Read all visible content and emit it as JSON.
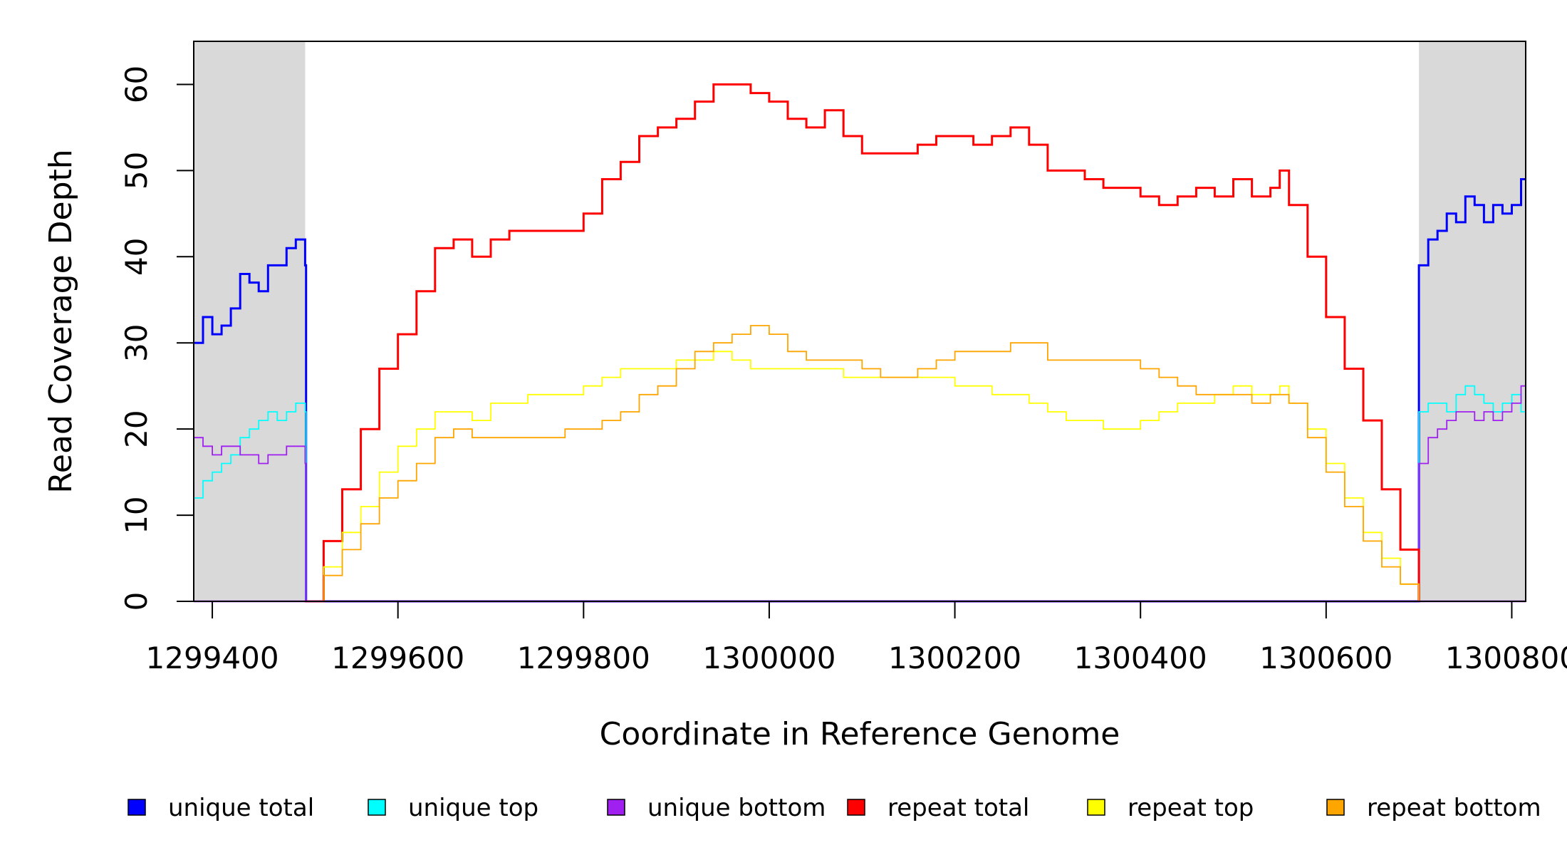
{
  "chart_data": {
    "type": "line",
    "xlabel": "Coordinate in Reference Genome",
    "ylabel": "Read Coverage Depth",
    "xlim": [
      1299380,
      1300815
    ],
    "ylim": [
      0,
      65
    ],
    "x_ticks": [
      1299400,
      1299600,
      1299800,
      1300000,
      1300200,
      1300400,
      1300600,
      1300800
    ],
    "x_tick_labels": [
      "1299400",
      "1299600",
      "1299800",
      "1300000",
      "1300200",
      "1300400",
      "1300600",
      "1300800"
    ],
    "y_ticks": [
      0,
      10,
      20,
      30,
      40,
      50,
      60
    ],
    "y_tick_labels": [
      "0",
      "10",
      "20",
      "30",
      "40",
      "50",
      "60"
    ],
    "shaded_regions": [
      [
        1299380,
        1299500
      ],
      [
        1300700,
        1300815
      ]
    ],
    "grid": false,
    "legend_position": "bottom",
    "series": [
      {
        "name": "unique total",
        "color": "#0000ff",
        "x": [
          1299380,
          1299390,
          1299400,
          1299410,
          1299420,
          1299430,
          1299440,
          1299450,
          1299460,
          1299470,
          1299480,
          1299490,
          1299500,
          1299501,
          1300699,
          1300700,
          1300710,
          1300720,
          1300730,
          1300740,
          1300750,
          1300760,
          1300770,
          1300780,
          1300790,
          1300800,
          1300810,
          1300815
        ],
        "y": [
          30,
          33,
          31,
          32,
          34,
          38,
          37,
          36,
          39,
          39,
          41,
          42,
          39,
          0,
          0,
          39,
          42,
          43,
          45,
          44,
          47,
          46,
          44,
          46,
          45,
          46,
          49,
          49
        ]
      },
      {
        "name": "unique top",
        "color": "#00ffff",
        "x": [
          1299380,
          1299390,
          1299400,
          1299410,
          1299420,
          1299430,
          1299440,
          1299450,
          1299460,
          1299470,
          1299480,
          1299490,
          1299500,
          1299501,
          1300699,
          1300700,
          1300710,
          1300720,
          1300730,
          1300740,
          1300750,
          1300760,
          1300770,
          1300780,
          1300790,
          1300800,
          1300810,
          1300815
        ],
        "y": [
          12,
          14,
          15,
          16,
          17,
          19,
          20,
          21,
          22,
          21,
          22,
          23,
          22,
          0,
          0,
          22,
          23,
          23,
          22,
          24,
          25,
          24,
          23,
          22,
          23,
          24,
          22,
          22
        ]
      },
      {
        "name": "unique bottom",
        "color": "#a020f0",
        "x": [
          1299380,
          1299390,
          1299400,
          1299410,
          1299420,
          1299430,
          1299440,
          1299450,
          1299460,
          1299470,
          1299480,
          1299490,
          1299500,
          1299501,
          1300699,
          1300700,
          1300710,
          1300720,
          1300730,
          1300740,
          1300750,
          1300760,
          1300770,
          1300780,
          1300790,
          1300800,
          1300810,
          1300815
        ],
        "y": [
          19,
          18,
          17,
          18,
          18,
          17,
          17,
          16,
          17,
          17,
          18,
          18,
          16,
          0,
          0,
          16,
          19,
          20,
          21,
          22,
          22,
          21,
          22,
          21,
          22,
          23,
          25,
          25
        ]
      },
      {
        "name": "repeat total",
        "color": "#ff0000",
        "x": [
          1299500,
          1299520,
          1299540,
          1299560,
          1299580,
          1299600,
          1299620,
          1299640,
          1299660,
          1299680,
          1299700,
          1299720,
          1299740,
          1299760,
          1299780,
          1299800,
          1299820,
          1299840,
          1299860,
          1299880,
          1299900,
          1299920,
          1299940,
          1299960,
          1299980,
          1300000,
          1300020,
          1300040,
          1300060,
          1300080,
          1300100,
          1300120,
          1300140,
          1300160,
          1300180,
          1300200,
          1300220,
          1300240,
          1300260,
          1300280,
          1300300,
          1300320,
          1300340,
          1300360,
          1300380,
          1300400,
          1300420,
          1300440,
          1300460,
          1300480,
          1300500,
          1300520,
          1300540,
          1300550,
          1300560,
          1300580,
          1300600,
          1300620,
          1300640,
          1300660,
          1300680,
          1300700
        ],
        "y": [
          0,
          7,
          13,
          20,
          27,
          31,
          36,
          41,
          42,
          40,
          42,
          43,
          43,
          43,
          43,
          45,
          49,
          51,
          54,
          55,
          56,
          58,
          60,
          60,
          59,
          58,
          56,
          55,
          57,
          54,
          52,
          52,
          52,
          53,
          54,
          54,
          53,
          54,
          55,
          53,
          50,
          50,
          49,
          48,
          48,
          47,
          46,
          47,
          48,
          47,
          49,
          47,
          48,
          50,
          46,
          40,
          33,
          27,
          21,
          13,
          6,
          0
        ]
      },
      {
        "name": "repeat top",
        "color": "#ffff00",
        "x": [
          1299500,
          1299520,
          1299540,
          1299560,
          1299580,
          1299600,
          1299620,
          1299640,
          1299660,
          1299680,
          1299700,
          1299720,
          1299740,
          1299760,
          1299780,
          1299800,
          1299820,
          1299840,
          1299860,
          1299880,
          1299900,
          1299920,
          1299940,
          1299960,
          1299980,
          1300000,
          1300020,
          1300040,
          1300060,
          1300080,
          1300100,
          1300120,
          1300140,
          1300160,
          1300180,
          1300200,
          1300220,
          1300240,
          1300260,
          1300280,
          1300300,
          1300320,
          1300340,
          1300360,
          1300380,
          1300400,
          1300420,
          1300440,
          1300460,
          1300480,
          1300500,
          1300520,
          1300540,
          1300550,
          1300560,
          1300580,
          1300600,
          1300620,
          1300640,
          1300660,
          1300680,
          1300700
        ],
        "y": [
          0,
          4,
          8,
          11,
          15,
          18,
          20,
          22,
          22,
          21,
          23,
          23,
          24,
          24,
          24,
          25,
          26,
          27,
          27,
          27,
          28,
          28,
          29,
          28,
          27,
          27,
          27,
          27,
          27,
          26,
          26,
          26,
          26,
          26,
          26,
          25,
          25,
          24,
          24,
          23,
          22,
          21,
          21,
          20,
          20,
          21,
          22,
          23,
          23,
          24,
          25,
          24,
          24,
          25,
          23,
          20,
          16,
          12,
          8,
          5,
          2,
          0
        ]
      },
      {
        "name": "repeat bottom",
        "color": "#ffa500",
        "x": [
          1299500,
          1299520,
          1299540,
          1299560,
          1299580,
          1299600,
          1299620,
          1299640,
          1299660,
          1299680,
          1299700,
          1299720,
          1299740,
          1299760,
          1299780,
          1299800,
          1299820,
          1299840,
          1299860,
          1299880,
          1299900,
          1299920,
          1299940,
          1299960,
          1299980,
          1300000,
          1300020,
          1300040,
          1300060,
          1300080,
          1300100,
          1300120,
          1300140,
          1300160,
          1300180,
          1300200,
          1300220,
          1300240,
          1300260,
          1300280,
          1300300,
          1300320,
          1300340,
          1300360,
          1300380,
          1300400,
          1300420,
          1300440,
          1300460,
          1300480,
          1300500,
          1300520,
          1300540,
          1300550,
          1300560,
          1300580,
          1300600,
          1300620,
          1300640,
          1300660,
          1300680,
          1300700
        ],
        "y": [
          0,
          3,
          6,
          9,
          12,
          14,
          16,
          19,
          20,
          19,
          19,
          19,
          19,
          19,
          20,
          20,
          21,
          22,
          24,
          25,
          27,
          29,
          30,
          31,
          32,
          31,
          29,
          28,
          28,
          28,
          27,
          26,
          26,
          27,
          28,
          29,
          29,
          29,
          30,
          30,
          28,
          28,
          28,
          28,
          28,
          27,
          26,
          25,
          24,
          24,
          24,
          23,
          24,
          24,
          23,
          19,
          15,
          11,
          7,
          4,
          2,
          0
        ]
      }
    ]
  }
}
